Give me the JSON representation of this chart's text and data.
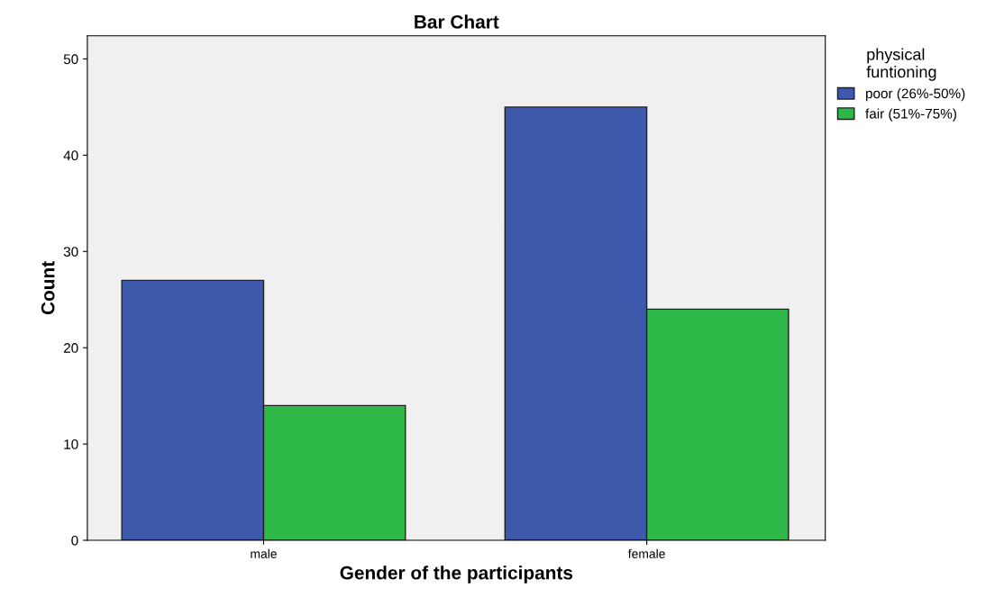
{
  "chart_data": {
    "type": "bar",
    "title": "Bar Chart",
    "xlabel": "Gender of the participants",
    "ylabel": "Count",
    "categories": [
      "male",
      "female"
    ],
    "series": [
      {
        "name": "poor (26%-50%)",
        "color": "#3e58ac",
        "values": [
          27,
          45
        ]
      },
      {
        "name": "fair (51%-75%)",
        "color": "#2eb848",
        "values": [
          14,
          24
        ]
      }
    ],
    "legend_title": "physical\nfuntioning",
    "legend": "top right",
    "ylim": [
      0,
      52.4
    ],
    "yticks": [
      0,
      10,
      20,
      30,
      40,
      50
    ],
    "grid": false
  }
}
